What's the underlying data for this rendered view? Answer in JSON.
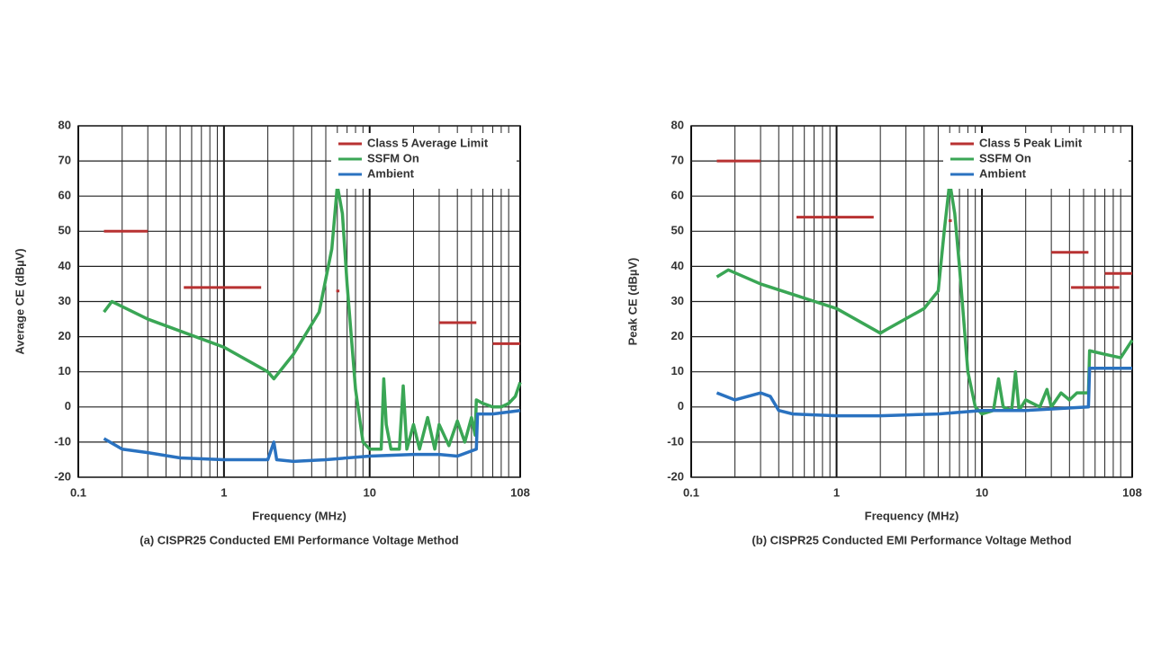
{
  "chart_data": [
    {
      "type": "line",
      "caption": "(a) CISPR25 Conducted EMI Performance Voltage Method",
      "xlabel": "Frequency (MHz)",
      "ylabel": "Average CE (dBµV)",
      "log_x": true,
      "grid": true,
      "legend": "upper right",
      "xlim": [
        0.1,
        108
      ],
      "xticks": [
        0.1,
        1,
        10,
        108
      ],
      "ylim": [
        -20,
        80
      ],
      "yticks": [
        -20,
        -10,
        0,
        10,
        20,
        30,
        40,
        50,
        60,
        70,
        80
      ],
      "series": [
        {
          "name": "Class 5 Average Limit",
          "color": "#b83232",
          "x": [
            0.15,
            0.3,
            0.3,
            0.53,
            1.8,
            1.8,
            5.9,
            6.2,
            6.2,
            30,
            54,
            54,
            70,
            108
          ],
          "values": [
            50,
            50,
            null,
            34,
            34,
            null,
            33,
            33,
            null,
            24,
            24,
            null,
            18,
            18
          ]
        },
        {
          "name": "SSFM On",
          "color": "#3aa655",
          "x": [
            0.15,
            0.17,
            0.3,
            1,
            2,
            2.2,
            3,
            4.5,
            5.5,
            6,
            6.5,
            7,
            8,
            9,
            10,
            12,
            12.5,
            13,
            14,
            16,
            17,
            18,
            20,
            22,
            25,
            28,
            30,
            35,
            40,
            45,
            50,
            53,
            54,
            60,
            70,
            80,
            90,
            100,
            108
          ],
          "values": [
            27,
            30,
            25,
            17,
            10,
            8,
            15,
            27,
            45,
            63,
            55,
            35,
            5,
            -10,
            -12,
            -12,
            8,
            -5,
            -12,
            -12,
            6,
            -12,
            -5,
            -12,
            -3,
            -12,
            -5,
            -11,
            -4,
            -10,
            -3,
            -8,
            2,
            1,
            0,
            0,
            1,
            3,
            7
          ]
        },
        {
          "name": "Ambient",
          "color": "#2a72c0",
          "x": [
            0.15,
            0.2,
            0.3,
            0.5,
            1,
            2,
            2.2,
            2.3,
            3,
            5,
            10,
            20,
            30,
            40,
            54,
            55,
            70,
            108
          ],
          "values": [
            -9,
            -12,
            -13,
            -14.5,
            -15,
            -15,
            -10,
            -15,
            -15.5,
            -15,
            -14,
            -13.5,
            -13.5,
            -14,
            -12,
            -2,
            -2,
            -1
          ]
        }
      ]
    },
    {
      "type": "line",
      "caption": "(b) CISPR25 Conducted EMI Performance Voltage Method",
      "xlabel": "Frequency (MHz)",
      "ylabel": "Peak CE (dBµV)",
      "log_x": true,
      "grid": true,
      "legend": "upper right",
      "xlim": [
        0.1,
        108
      ],
      "xticks": [
        0.1,
        1,
        10,
        108
      ],
      "ylim": [
        -20,
        80
      ],
      "yticks": [
        -20,
        -10,
        0,
        10,
        20,
        30,
        40,
        50,
        60,
        70,
        80
      ],
      "series": [
        {
          "name": "Class 5 Peak Limit",
          "color": "#b83232",
          "x": [
            0.15,
            0.3,
            0.3,
            0.53,
            1.8,
            1.8,
            5.9,
            6.2,
            6.2,
            30,
            54,
            54,
            41,
            88,
            88,
            70,
            108
          ],
          "values": [
            70,
            70,
            null,
            54,
            54,
            null,
            53,
            53,
            null,
            44,
            44,
            null,
            34,
            34,
            null,
            38,
            38
          ]
        },
        {
          "name": "SSFM On",
          "color": "#3aa655",
          "x": [
            0.15,
            0.18,
            0.3,
            1,
            2,
            2.2,
            4,
            5,
            5.5,
            6,
            6.5,
            7,
            8,
            9,
            10,
            12,
            13,
            14,
            16,
            17,
            18,
            20,
            25,
            28,
            30,
            35,
            40,
            45,
            54,
            55,
            70,
            90,
            108
          ],
          "values": [
            37,
            39,
            35,
            28,
            21,
            22,
            28,
            33,
            50,
            64,
            55,
            40,
            10,
            0,
            -2,
            -1,
            8,
            0,
            -1,
            10,
            -1,
            2,
            0,
            5,
            0,
            4,
            2,
            4,
            4,
            16,
            15,
            14,
            19
          ]
        },
        {
          "name": "Ambient",
          "color": "#2a72c0",
          "x": [
            0.15,
            0.2,
            0.3,
            0.35,
            0.4,
            0.5,
            1,
            2,
            5,
            10,
            20,
            54,
            55,
            70,
            108
          ],
          "values": [
            4,
            2,
            4,
            3,
            -1,
            -2,
            -2.5,
            -2.5,
            -2,
            -1,
            -1,
            0,
            11,
            11,
            11
          ]
        }
      ]
    }
  ]
}
